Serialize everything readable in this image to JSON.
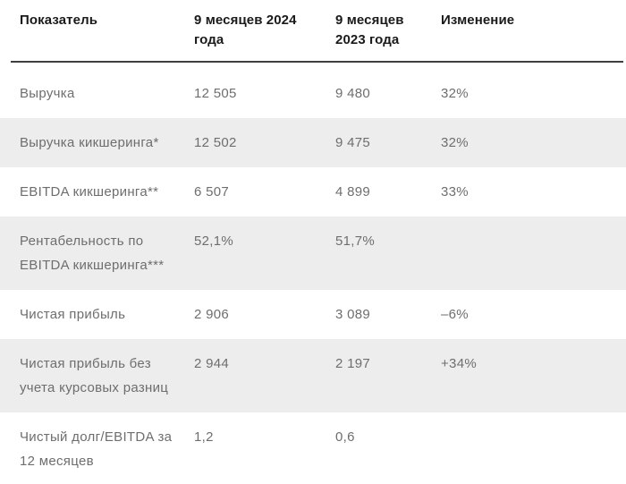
{
  "chart_data": {
    "type": "table",
    "columns": [
      "Показатель",
      "9 месяцев 2024 года",
      "9 месяцев 2023 года",
      "Изменение"
    ],
    "rows": [
      {
        "label": "Выручка",
        "y2024": "12 505",
        "y2023": "9 480",
        "change": "32%"
      },
      {
        "label": "Выручка кикшеринга*",
        "y2024": "12 502",
        "y2023": "9 475",
        "change": "32%"
      },
      {
        "label": "EBITDA кикшеринга**",
        "y2024": "6 507",
        "y2023": "4 899",
        "change": "33%"
      },
      {
        "label": "Рентабельность по EBITDA кикшеринга***",
        "y2024": "52,1%",
        "y2023": "51,7%",
        "change": ""
      },
      {
        "label": "Чистая прибыль",
        "y2024": "2 906",
        "y2023": "3 089",
        "change": "–6%"
      },
      {
        "label": "Чистая прибыль без учета курсовых разниц",
        "y2024": "2 944",
        "y2023": "2 197",
        "change": "+34%"
      },
      {
        "label": "Чистый долг/EBITDA за 12 месяцев",
        "y2024": "1,2",
        "y2023": "0,6",
        "change": ""
      }
    ]
  },
  "colors": {
    "row_shade": "#ededed",
    "header_text": "#1a1a1a",
    "body_text": "#6e6e6e",
    "header_rule": "#3e3e3e",
    "bottom_rule": "#ededed"
  }
}
